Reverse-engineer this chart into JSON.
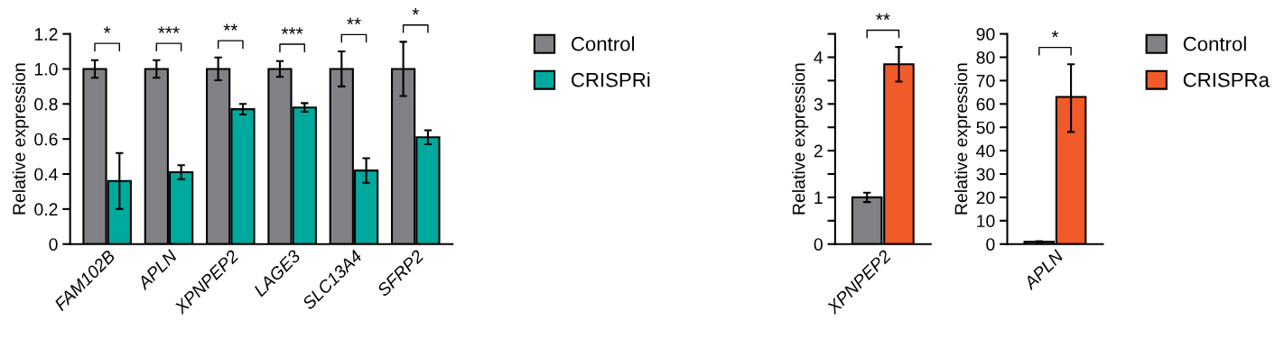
{
  "chart_data": [
    {
      "type": "bar",
      "ylabel": "Relative expression",
      "categories": [
        "FAM102B",
        "APLN",
        "XPNPEP2",
        "LAGE3",
        "SLC13A4",
        "SFRP2"
      ],
      "series": [
        {
          "name": "Control",
          "color": "#808085",
          "values": [
            1.0,
            1.0,
            1.0,
            1.0,
            1.0,
            1.0
          ],
          "errors": [
            0.05,
            0.05,
            0.065,
            0.045,
            0.1,
            0.155
          ]
        },
        {
          "name": "CRISPRi",
          "color": "#00a99d",
          "values": [
            0.36,
            0.41,
            0.77,
            0.78,
            0.42,
            0.61
          ],
          "errors": [
            [
              0.2,
              0.52
            ],
            0.04,
            0.03,
            0.025,
            0.07,
            0.04
          ]
        }
      ],
      "ylim": [
        0,
        1.2
      ],
      "yticks": [
        0,
        0.2,
        0.4,
        0.6,
        0.8,
        {
          "value": 1.0,
          "label": "1.0"
        },
        1.2
      ],
      "legend": "right",
      "annotations": [
        "*",
        "***",
        "**",
        "***",
        "**",
        "*"
      ]
    },
    {
      "type": "bar",
      "ylabel": "Relative expression",
      "categories": [
        "XPNPEP2"
      ],
      "series": [
        {
          "color": "#808085",
          "values": [
            1.0
          ],
          "errors": [
            0.1
          ]
        },
        {
          "color": "#f15a29",
          "values": [
            3.85
          ],
          "errors": [
            0.37
          ]
        }
      ],
      "ylim": [
        0,
        4.5
      ],
      "yticks": [
        0,
        {
          "value": 0.5,
          "label": null
        },
        1,
        {
          "value": 1.5,
          "label": null
        },
        2,
        {
          "value": 2.5,
          "label": null
        },
        3,
        {
          "value": 3.5,
          "label": null
        },
        4,
        {
          "value": 4.5,
          "label": null
        }
      ],
      "annotations": [
        "**"
      ]
    },
    {
      "type": "bar",
      "ylabel": "Relative expression",
      "categories": [
        "APLN"
      ],
      "series": [
        {
          "name": "Control",
          "color": "#808085",
          "values": [
            1.0
          ],
          "errors": [
            0.2
          ]
        },
        {
          "name": "CRISPRa",
          "color": "#f15a29",
          "values": [
            63
          ],
          "errors": [
            [
              48,
              77
            ]
          ]
        }
      ],
      "ylim": [
        0,
        90
      ],
      "yticks": [
        0,
        10,
        20,
        30,
        40,
        50,
        60,
        70,
        80,
        90
      ],
      "legend": "right",
      "annotations": [
        "*"
      ]
    }
  ]
}
